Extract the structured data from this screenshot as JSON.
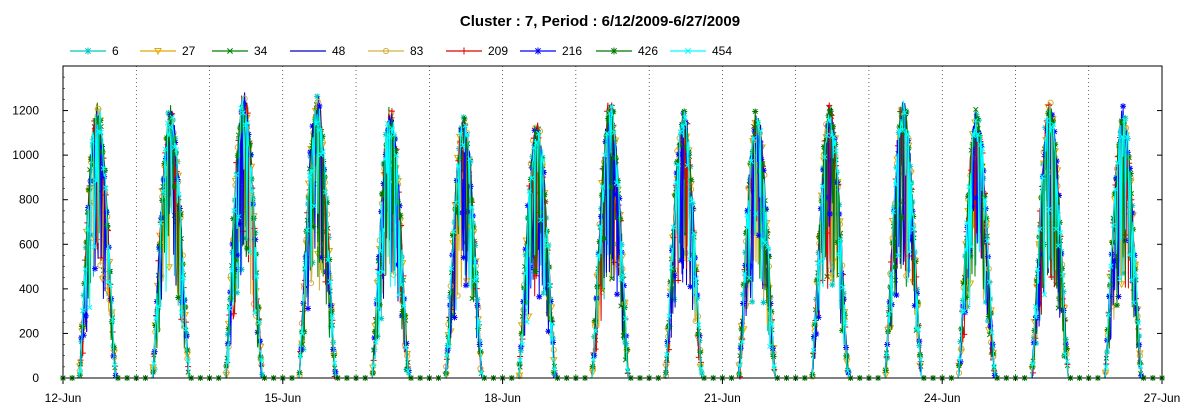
{
  "chart_data": {
    "type": "line",
    "title": "Cluster : 7, Period : 6/12/2009-6/27/2009",
    "xlabel": "",
    "ylabel": "",
    "x_tick_labels": [
      "12-Jun",
      "15-Jun",
      "18-Jun",
      "21-Jun",
      "24-Jun",
      "27-Jun"
    ],
    "x_tick_days": [
      12,
      15,
      18,
      21,
      24,
      27
    ],
    "x_range_days": [
      12,
      27
    ],
    "ylim": [
      0,
      1400
    ],
    "y_ticks": [
      0,
      200,
      400,
      600,
      800,
      1000,
      1200
    ],
    "grid": "vertical dotted lines at each day",
    "legend_position": "top",
    "day_peaks": [
      1200,
      1180,
      1250,
      1230,
      1180,
      1150,
      1120,
      1220,
      1170,
      1160,
      1200,
      1220,
      1170,
      1200,
      1170
    ],
    "series": [
      {
        "name": "6",
        "color": "#00c8c8",
        "marker": "asterisk"
      },
      {
        "name": "27",
        "color": "#e0a800",
        "marker": "triangle-down"
      },
      {
        "name": "34",
        "color": "#008000",
        "marker": "x"
      },
      {
        "name": "48",
        "color": "#0000c0",
        "marker": "none"
      },
      {
        "name": "83",
        "color": "#d4b040",
        "marker": "circle"
      },
      {
        "name": "209",
        "color": "#e00000",
        "marker": "plus"
      },
      {
        "name": "216",
        "color": "#0000ff",
        "marker": "asterisk"
      },
      {
        "name": "426",
        "color": "#007800",
        "marker": "asterisk"
      },
      {
        "name": "454",
        "color": "#00ffff",
        "marker": "x"
      }
    ]
  }
}
